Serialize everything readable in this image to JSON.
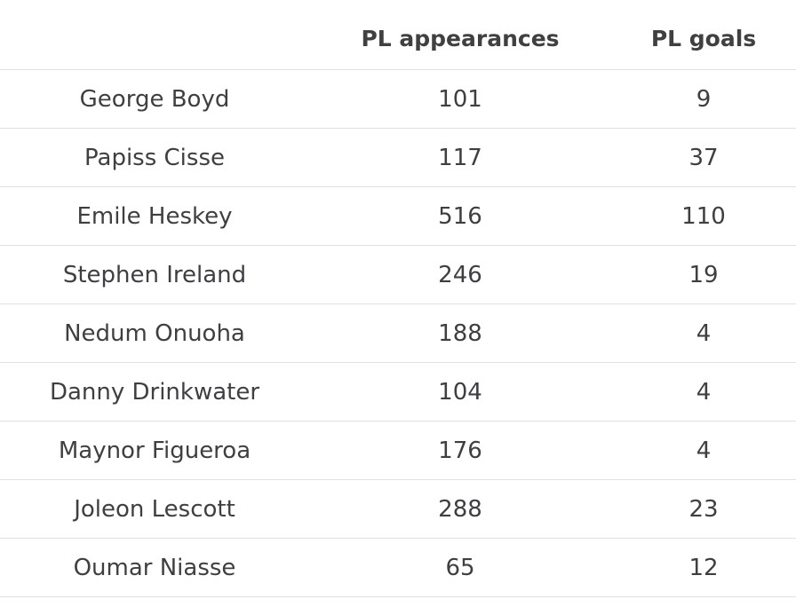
{
  "table": {
    "headers": [
      "",
      "PL appearances",
      "PL goals"
    ],
    "rows": [
      {
        "player": "George Boyd",
        "appearances": "101",
        "goals": "9"
      },
      {
        "player": "Papiss Cisse",
        "appearances": "117",
        "goals": "37"
      },
      {
        "player": "Emile Heskey",
        "appearances": "516",
        "goals": "110"
      },
      {
        "player": "Stephen Ireland",
        "appearances": "246",
        "goals": "19"
      },
      {
        "player": "Nedum Onuoha",
        "appearances": "188",
        "goals": "4"
      },
      {
        "player": "Danny Drinkwater",
        "appearances": "104",
        "goals": "4"
      },
      {
        "player": "Maynor Figueroa",
        "appearances": "176",
        "goals": "4"
      },
      {
        "player": "Joleon Lescott",
        "appearances": "288",
        "goals": "23"
      },
      {
        "player": "Oumar Niasse",
        "appearances": "65",
        "goals": "12"
      }
    ]
  },
  "colors": {
    "text": "#3f3f42",
    "divider": "#e1e1e1",
    "background": "#ffffff"
  }
}
